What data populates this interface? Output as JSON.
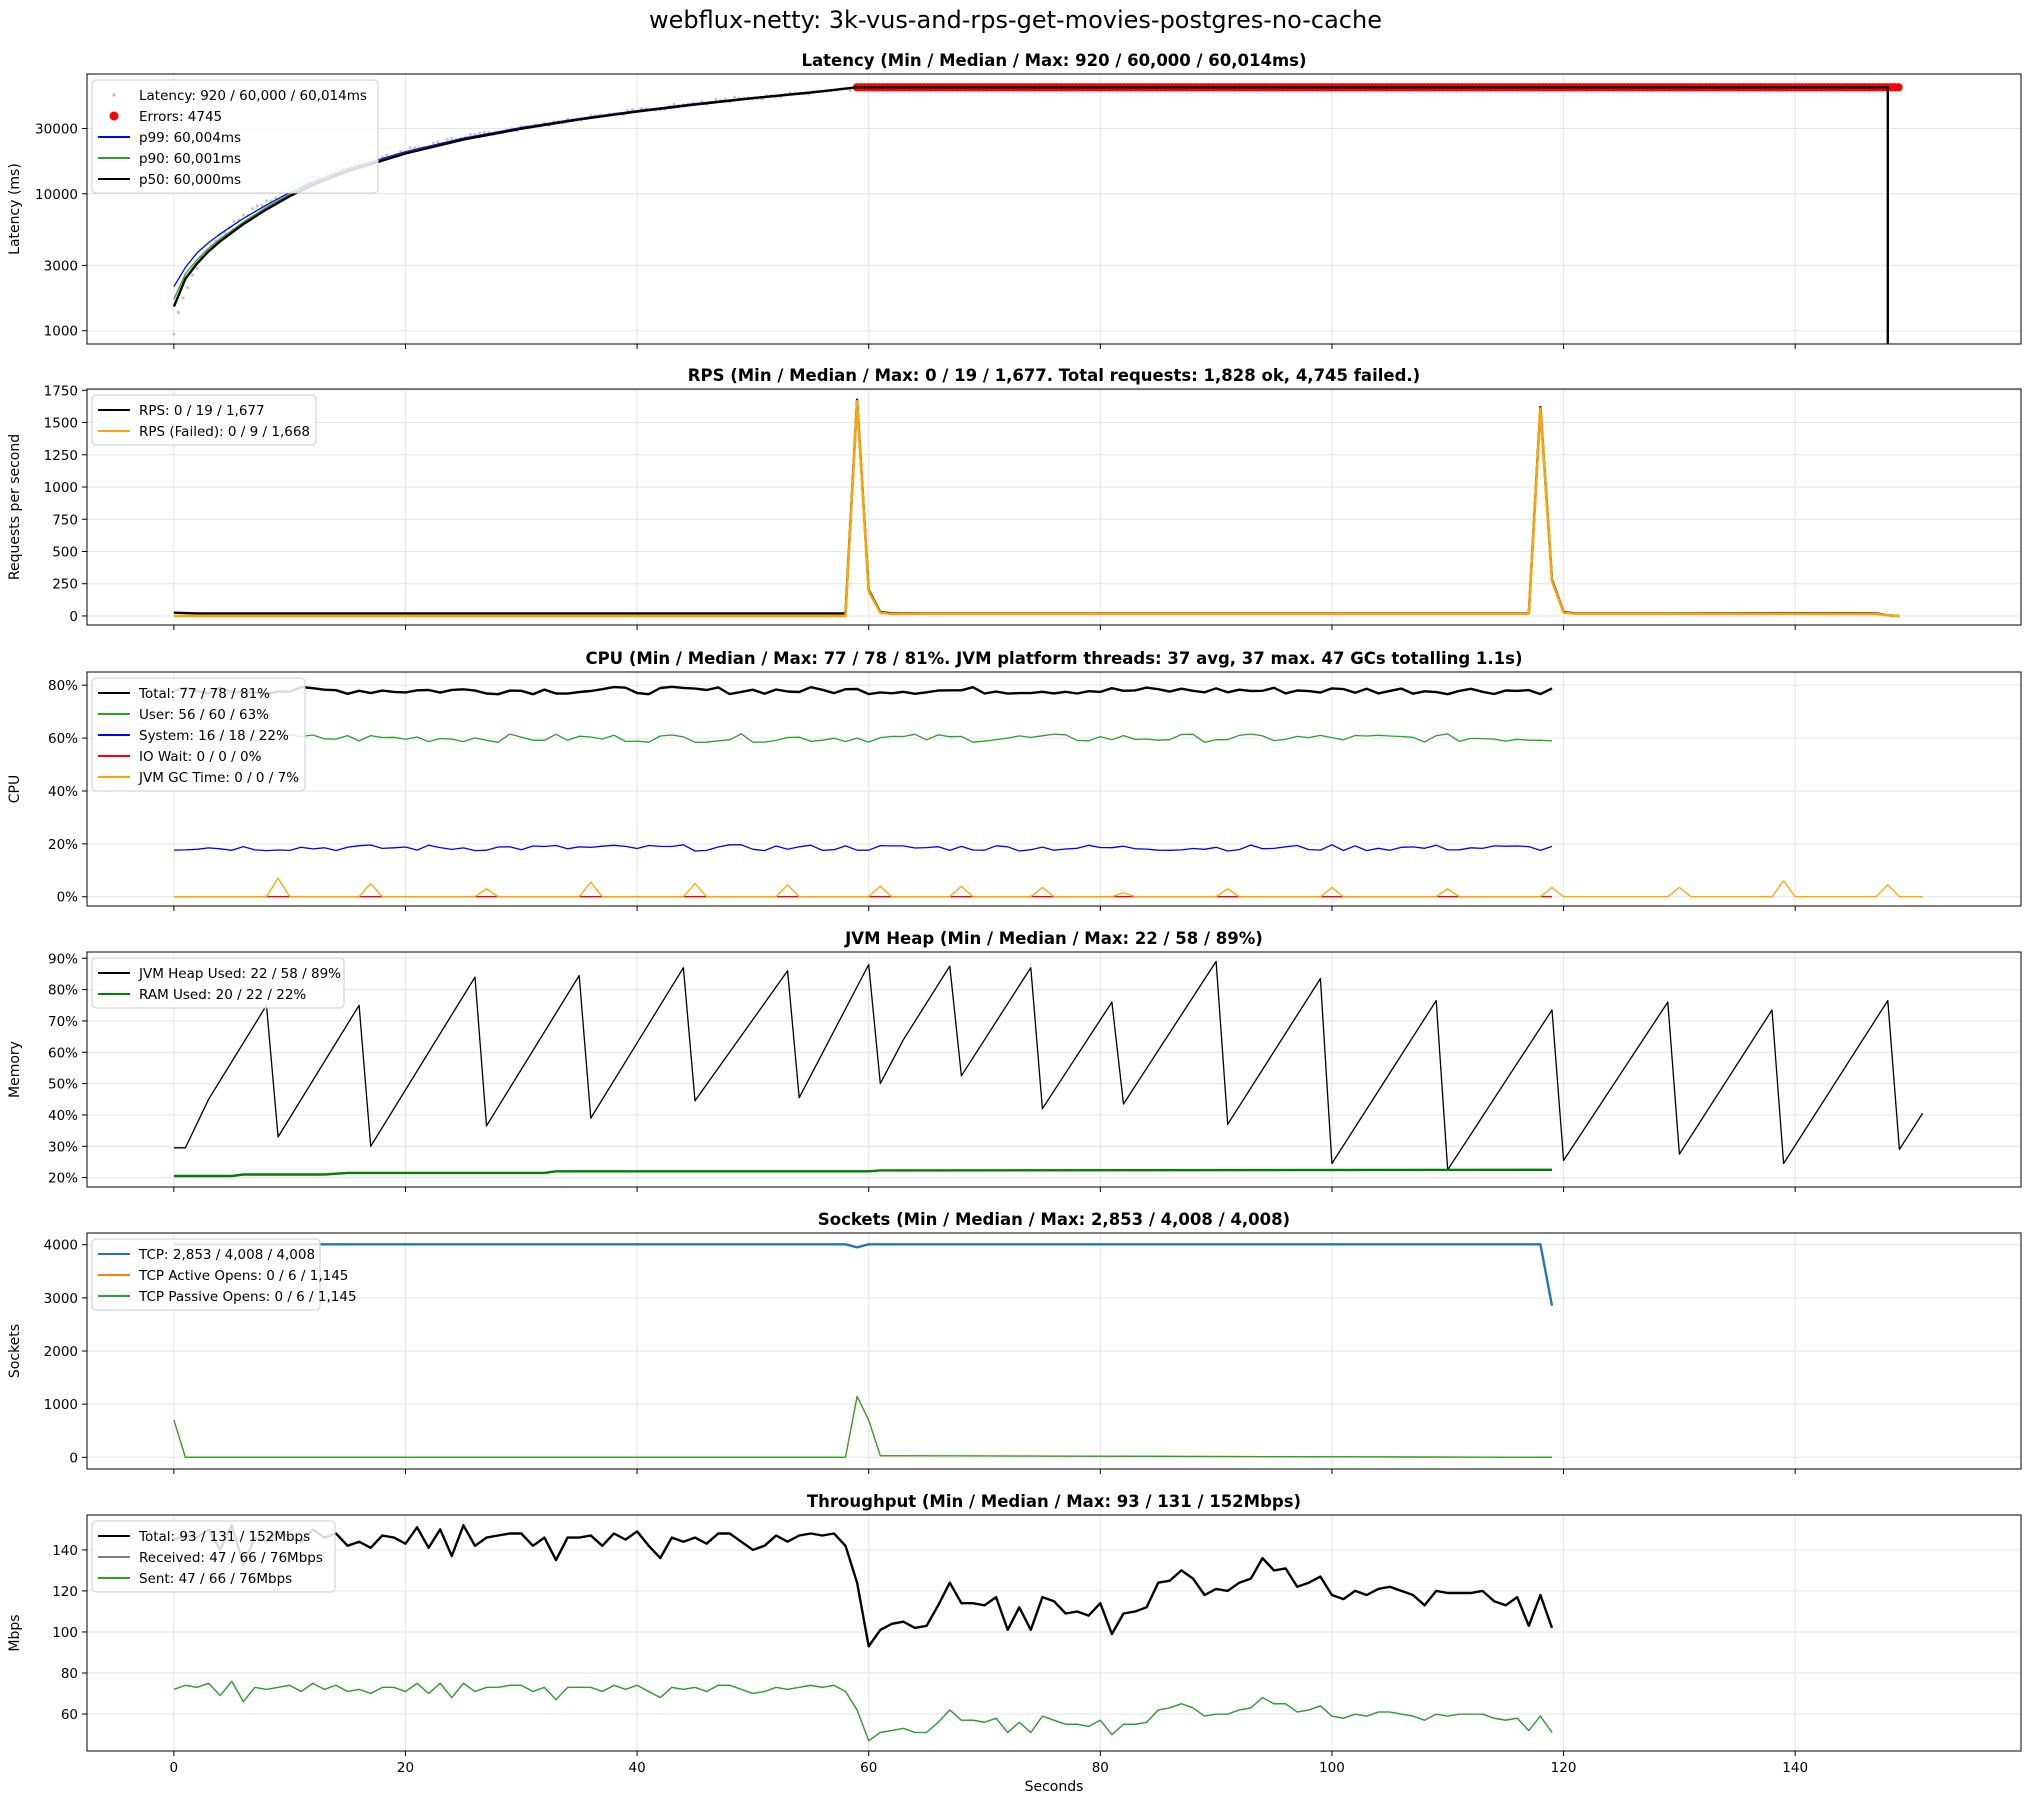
{
  "figure": {
    "title": "webflux-netty: 3k-vus-and-rps-get-movies-postgres-no-cache",
    "xlabel": "Seconds"
  },
  "chart_data": [
    {
      "type": "scatter",
      "title": "Latency (Min / Median / Max: 920 / 60,000 / 60,014ms)",
      "ylabel": "Latency (ms)",
      "yscale": "log",
      "ylim": [
        800,
        75000
      ],
      "yticks": [
        1000,
        3000,
        10000,
        30000
      ],
      "ytick_labels": [
        "1000",
        "3000",
        "10000",
        "30000"
      ],
      "xlim": [
        -7.5,
        159.5
      ],
      "xticks": [
        0,
        20,
        40,
        60,
        80,
        100,
        120,
        140
      ],
      "series": [
        {
          "name": "Latency: 920 / 60,000 / 60,014ms",
          "color": "#c8c8c8",
          "style": "dots"
        },
        {
          "name": "Errors: 4745",
          "color": "#ff0000",
          "style": "scatter",
          "x_range": [
            59,
            149
          ],
          "y": 60000
        },
        {
          "name": "p99: 60,004ms",
          "color": "#0000ff",
          "style": "line",
          "x": [
            0,
            1,
            2,
            3,
            4,
            5,
            6,
            8,
            10,
            12,
            15,
            20,
            25,
            30,
            35,
            40,
            45,
            50,
            55,
            59,
            148,
            148
          ],
          "y": [
            2100,
            2900,
            3700,
            4400,
            5100,
            5800,
            6600,
            8300,
            10200,
            12200,
            15200,
            20300,
            25500,
            30500,
            35500,
            40500,
            45500,
            50500,
            55500,
            60000,
            60000,
            800
          ]
        },
        {
          "name": "p90: 60,001ms",
          "color": "#2ca02c",
          "style": "line",
          "x": [
            0,
            1,
            2,
            3,
            4,
            5,
            6,
            8,
            10,
            12,
            15,
            20,
            25,
            30,
            35,
            40,
            45,
            50,
            55,
            59,
            148
          ],
          "y": [
            1700,
            2600,
            3300,
            4000,
            4700,
            5400,
            6200,
            8000,
            9900,
            11900,
            14900,
            20000,
            25200,
            30200,
            35200,
            40200,
            45200,
            50200,
            55200,
            60000,
            60000
          ]
        },
        {
          "name": "p50: 60,000ms",
          "color": "#000000",
          "style": "line",
          "x": [
            0,
            1,
            2,
            3,
            4,
            5,
            6,
            8,
            10,
            12,
            15,
            20,
            25,
            30,
            35,
            40,
            45,
            50,
            55,
            59,
            148,
            148
          ],
          "y": [
            1500,
            2400,
            3100,
            3800,
            4500,
            5200,
            6000,
            7700,
            9600,
            11600,
            14600,
            19700,
            24900,
            29900,
            34900,
            39900,
            44900,
            49900,
            54900,
            60000,
            60000,
            800
          ]
        }
      ]
    },
    {
      "type": "line",
      "title": "RPS (Min / Median / Max: 0 / 19 / 1,677. Total requests: 1,828 ok, 4,745 failed.)",
      "ylabel": "Requests per second",
      "ylim": [
        -70,
        1760
      ],
      "yticks": [
        0,
        250,
        500,
        750,
        1000,
        1250,
        1500,
        1750
      ],
      "xlim": [
        -7.5,
        159.5
      ],
      "xticks": [
        0,
        20,
        40,
        60,
        80,
        100,
        120,
        140
      ],
      "series": [
        {
          "name": "RPS: 0 / 19 / 1,677",
          "color": "#000000",
          "x": [
            0,
            2,
            58,
            59,
            60,
            61,
            62,
            65,
            117,
            118,
            119,
            120,
            121,
            124,
            147,
            148,
            149
          ],
          "y": [
            25,
            20,
            20,
            1677,
            200,
            30,
            20,
            20,
            20,
            1620,
            280,
            30,
            20,
            20,
            20,
            5,
            0
          ]
        },
        {
          "name": "RPS (Failed): 0 / 9 / 1,668",
          "color": "#ffa500",
          "x": [
            0,
            58,
            59,
            60,
            61,
            62,
            65,
            117,
            118,
            119,
            120,
            121,
            124,
            147,
            148,
            149
          ],
          "y": [
            0,
            0,
            1668,
            190,
            25,
            15,
            18,
            18,
            1610,
            270,
            25,
            18,
            18,
            15,
            5,
            0
          ]
        }
      ]
    },
    {
      "type": "line",
      "title": "CPU (Min / Median / Max: 77 / 78 / 81%. JVM platform threads: 37 avg, 37 max. 47 GCs totalling 1.1s)",
      "ylabel": "CPU",
      "ylim": [
        -3.5,
        85
      ],
      "yticks": [
        0,
        20,
        40,
        60,
        80
      ],
      "ytick_labels": [
        "0%",
        "20%",
        "40%",
        "60%",
        "80%"
      ],
      "xlim": [
        -7.5,
        159.5
      ],
      "xticks": [
        0,
        20,
        40,
        60,
        80,
        100,
        120,
        140
      ],
      "series": [
        {
          "name": "Total: 77 / 78 / 81%",
          "color": "#000000",
          "x_range": [
            0,
            119
          ],
          "base": 78,
          "amp": 1.4
        },
        {
          "name": "User: 56 / 60 / 63%",
          "color": "#2ca02c",
          "x_range": [
            0,
            119
          ],
          "base": 60,
          "amp": 1.6
        },
        {
          "name": "System: 16 / 18 / 22%",
          "color": "#0000ff",
          "x_range": [
            0,
            119
          ],
          "base": 18.5,
          "amp": 1.2
        },
        {
          "name": "IO Wait: 0 / 0 / 0%",
          "color": "#ff0000",
          "x_range": [
            0,
            119
          ],
          "base": 0,
          "amp": 0
        },
        {
          "name": "JVM GC Time: 0 / 0 / 7%",
          "color": "#ffa500",
          "x_range": [
            0,
            151
          ],
          "spikes": [
            [
              9,
              7
            ],
            [
              17,
              5
            ],
            [
              27,
              3
            ],
            [
              36,
              5.5
            ],
            [
              45,
              5
            ],
            [
              53,
              4.5
            ],
            [
              61,
              4
            ],
            [
              68,
              4
            ],
            [
              75,
              3.5
            ],
            [
              82,
              1.5
            ],
            [
              91,
              3
            ],
            [
              100,
              3.5
            ],
            [
              110,
              3
            ],
            [
              119,
              3.5
            ],
            [
              130,
              3.5
            ],
            [
              139,
              6
            ],
            [
              148,
              4.5
            ]
          ]
        }
      ]
    },
    {
      "type": "line",
      "title": "JVM Heap (Min / Median / Max: 22 / 58 / 89%)",
      "ylabel": "Memory",
      "ylim": [
        17,
        92
      ],
      "yticks": [
        20,
        30,
        40,
        50,
        60,
        70,
        80,
        90
      ],
      "ytick_labels": [
        "20%",
        "30%",
        "40%",
        "50%",
        "60%",
        "70%",
        "80%",
        "90%"
      ],
      "xlim": [
        -7.5,
        159.5
      ],
      "xticks": [
        0,
        20,
        40,
        60,
        80,
        100,
        120,
        140
      ],
      "series": [
        {
          "name": "JVM Heap Used: 22 / 58 / 89%",
          "color": "#000000",
          "x": [
            0,
            1,
            3,
            8,
            9,
            16,
            17,
            26,
            27,
            35,
            36,
            44,
            45,
            53,
            54,
            60,
            61,
            63,
            67,
            68,
            74,
            75,
            81,
            82,
            90,
            91,
            99,
            100,
            109,
            110,
            119,
            120,
            129,
            130,
            138,
            139,
            148,
            149,
            151
          ],
          "y": [
            29.5,
            29.5,
            45,
            75,
            33,
            75,
            30,
            84,
            36.5,
            84.5,
            39,
            87,
            44.5,
            86,
            45.5,
            88,
            50,
            64,
            87.5,
            52.5,
            87,
            42,
            76,
            43.5,
            89,
            37,
            83.5,
            24.5,
            76.5,
            22.5,
            73.5,
            25.5,
            76,
            27.5,
            73.5,
            24.5,
            76.5,
            29,
            40.5
          ]
        },
        {
          "name": "RAM Used: 20 / 22 / 22%",
          "color": "#008000",
          "x": [
            0,
            5,
            6,
            13,
            15,
            32,
            33,
            60,
            61,
            119
          ],
          "y": [
            20.5,
            20.5,
            21,
            21,
            21.5,
            21.5,
            22,
            22,
            22.3,
            22.5
          ]
        }
      ]
    },
    {
      "type": "line",
      "title": "Sockets (Min / Median / Max: 2,853 / 4,008 / 4,008)",
      "ylabel": "Sockets",
      "ylim": [
        -220,
        4220
      ],
      "yticks": [
        0,
        1000,
        2000,
        3000,
        4000
      ],
      "xlim": [
        -7.5,
        159.5
      ],
      "xticks": [
        0,
        20,
        40,
        60,
        80,
        100,
        120,
        140
      ],
      "series": [
        {
          "name": "TCP: 2,853 / 4,008 / 4,008",
          "color": "#1f77b4",
          "x": [
            0,
            58,
            59,
            60,
            118,
            119
          ],
          "y": [
            4008,
            4008,
            3950,
            4008,
            4008,
            2853
          ]
        },
        {
          "name": "TCP Active Opens: 0 / 6 / 1,145",
          "color": "#ff7f0e",
          "x": [
            0,
            1,
            58,
            59,
            60,
            61,
            119
          ],
          "y": [
            700,
            0,
            0,
            1145,
            700,
            30,
            0
          ]
        },
        {
          "name": "TCP Passive Opens: 0 / 6 / 1,145",
          "color": "#2ca02c",
          "x": [
            0,
            1,
            58,
            59,
            60,
            61,
            119
          ],
          "y": [
            700,
            0,
            0,
            1145,
            700,
            30,
            0
          ]
        }
      ]
    },
    {
      "type": "line",
      "title": "Throughput (Min / Median / Max: 93 / 131 / 152Mbps)",
      "ylabel": "Mbps",
      "ylim": [
        42,
        157
      ],
      "yticks": [
        60,
        80,
        100,
        120,
        140
      ],
      "xlim": [
        -7.5,
        159.5
      ],
      "xticks": [
        0,
        20,
        40,
        60,
        80,
        100,
        120,
        140
      ],
      "series": [
        {
          "name": "Total: 93 / 131 / 152Mbps",
          "color": "#000000",
          "y": [
            145,
            147,
            146,
            150,
            140,
            152,
            133,
            146,
            144,
            149,
            146,
            144,
            150,
            146,
            148,
            142,
            144,
            141,
            147,
            146,
            143,
            151,
            141,
            150,
            137,
            152,
            142,
            146,
            147,
            148,
            148,
            142,
            146,
            135,
            146,
            146,
            147,
            142,
            148,
            145,
            149,
            142,
            136,
            146,
            144,
            146,
            143,
            148,
            148,
            144,
            140,
            142,
            147,
            144,
            147,
            148,
            147,
            148,
            142,
            124,
            93,
            101,
            104,
            105,
            102,
            103,
            113,
            124,
            114,
            114,
            113,
            117,
            101,
            112,
            101,
            117,
            115,
            109,
            110,
            108,
            114,
            99,
            109,
            110,
            112,
            124,
            125,
            130,
            126,
            118,
            121,
            120,
            124,
            126,
            136,
            130,
            131,
            122,
            124,
            127,
            118,
            116,
            120,
            118,
            121,
            122,
            120,
            118,
            113,
            120,
            119,
            119,
            119,
            120,
            115,
            113,
            117,
            103,
            118,
            102
          ]
        },
        {
          "name": "Received: 47 / 66 / 76Mbps",
          "color": "#7f7f7f",
          "y": [
            72,
            74,
            73,
            75,
            69,
            76,
            66,
            73,
            72,
            73,
            74,
            71,
            75,
            72,
            74,
            71,
            72,
            70,
            73,
            73,
            71,
            75,
            70,
            75,
            68,
            75,
            71,
            73,
            73,
            74,
            74,
            71,
            73,
            67,
            73,
            73,
            73,
            71,
            74,
            72,
            74,
            71,
            68,
            73,
            72,
            73,
            71,
            74,
            74,
            72,
            70,
            71,
            73,
            72,
            73,
            74,
            73,
            74,
            71,
            62,
            47,
            51,
            52,
            53,
            51,
            51,
            56,
            62,
            57,
            57,
            56,
            58,
            51,
            56,
            51,
            59,
            57,
            55,
            55,
            54,
            57,
            50,
            55,
            55,
            56,
            62,
            63,
            65,
            63,
            59,
            60,
            60,
            62,
            63,
            68,
            65,
            65,
            61,
            62,
            64,
            59,
            58,
            60,
            59,
            61,
            61,
            60,
            59,
            57,
            60,
            59,
            60,
            60,
            60,
            58,
            57,
            58,
            52,
            59,
            51
          ]
        },
        {
          "name": "Sent: 47 / 66 / 76Mbps",
          "color": "#2ca02c",
          "y": [
            72,
            74,
            73,
            75,
            69,
            76,
            66,
            73,
            72,
            73,
            74,
            71,
            75,
            72,
            74,
            71,
            72,
            70,
            73,
            73,
            71,
            75,
            70,
            75,
            68,
            75,
            71,
            73,
            73,
            74,
            74,
            71,
            73,
            67,
            73,
            73,
            73,
            71,
            74,
            72,
            74,
            71,
            68,
            73,
            72,
            73,
            71,
            74,
            74,
            72,
            70,
            71,
            73,
            72,
            73,
            74,
            73,
            74,
            71,
            62,
            47,
            51,
            52,
            53,
            51,
            51,
            56,
            62,
            57,
            57,
            56,
            58,
            51,
            56,
            51,
            59,
            57,
            55,
            55,
            54,
            57,
            50,
            55,
            55,
            56,
            62,
            63,
            65,
            63,
            59,
            60,
            60,
            62,
            63,
            68,
            65,
            65,
            61,
            62,
            64,
            59,
            58,
            60,
            59,
            61,
            61,
            60,
            59,
            57,
            60,
            59,
            60,
            60,
            60,
            58,
            57,
            58,
            52,
            59,
            51
          ]
        }
      ]
    }
  ]
}
